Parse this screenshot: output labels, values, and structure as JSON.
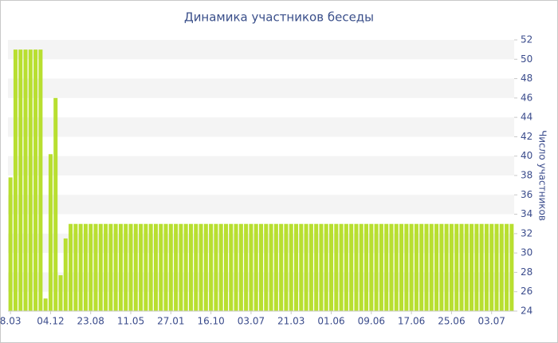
{
  "chart_data": {
    "type": "bar",
    "title": "Динамика участников беседы",
    "y_axis_label": "Число участников",
    "categories": [
      "8.03",
      null,
      null,
      null,
      null,
      null,
      null,
      null,
      "04.12",
      null,
      null,
      null,
      null,
      null,
      null,
      null,
      "23.08",
      null,
      null,
      null,
      null,
      null,
      null,
      null,
      "11.05",
      null,
      null,
      null,
      null,
      null,
      null,
      null,
      "27.01",
      null,
      null,
      null,
      null,
      null,
      null,
      null,
      "16.10",
      null,
      null,
      null,
      null,
      null,
      null,
      null,
      "03.07",
      null,
      null,
      null,
      null,
      null,
      null,
      null,
      "21.03",
      null,
      null,
      null,
      null,
      null,
      null,
      null,
      "01.06",
      null,
      null,
      null,
      null,
      null,
      null,
      null,
      "09.06",
      null,
      null,
      null,
      null,
      null,
      null,
      null,
      "17.06",
      null,
      null,
      null,
      null,
      null,
      null,
      null,
      "25.06",
      null,
      null,
      null,
      null,
      null,
      null,
      null,
      "03.07",
      null,
      null,
      null,
      null
    ],
    "values": [
      37.8,
      51,
      51,
      51,
      51,
      51,
      51,
      25.3,
      40.2,
      46,
      27.7,
      31.5,
      33,
      33,
      33,
      33,
      33,
      33,
      33,
      33,
      33,
      33,
      33,
      33,
      33,
      33,
      33,
      33,
      33,
      33,
      33,
      33,
      33,
      33,
      33,
      33,
      33,
      33,
      33,
      33,
      33,
      33,
      33,
      33,
      33,
      33,
      33,
      33,
      33,
      33,
      33,
      33,
      33,
      33,
      33,
      33,
      33,
      33,
      33,
      33,
      33,
      33,
      33,
      33,
      33,
      33,
      33,
      33,
      33,
      33,
      33,
      33,
      33,
      33,
      33,
      33,
      33,
      33,
      33,
      33,
      33,
      33,
      33,
      33,
      33,
      33,
      33,
      33,
      33,
      33,
      33,
      33,
      33,
      33,
      33,
      33,
      33,
      33,
      33,
      33,
      33
    ],
    "color": "#b8df30",
    "ylim": [
      24,
      52
    ],
    "yticks": [
      24,
      26,
      28,
      30,
      32,
      34,
      36,
      38,
      40,
      42,
      44,
      46,
      48,
      50,
      52
    ],
    "bands": true
  }
}
